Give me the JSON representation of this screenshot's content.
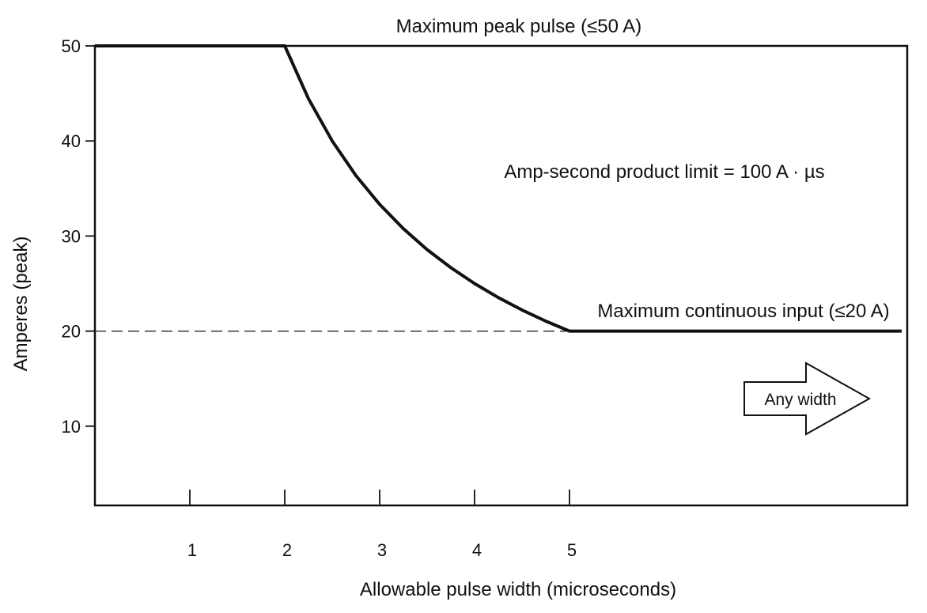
{
  "chart_data": {
    "type": "line",
    "xlabel": "Allowable pulse width (microseconds)",
    "ylabel": "Amperes (peak)",
    "xlim": [
      0,
      8.5
    ],
    "ylim": [
      0,
      50
    ],
    "x_ticks": [
      1,
      2,
      3,
      4,
      5
    ],
    "y_ticks": [
      10,
      20,
      30,
      40,
      50
    ],
    "series": [
      {
        "points": [
          [
            0,
            50
          ],
          [
            2,
            50
          ],
          [
            2.25,
            44.44
          ],
          [
            2.5,
            40
          ],
          [
            2.75,
            36.36
          ],
          [
            3,
            33.33
          ],
          [
            3.25,
            30.77
          ],
          [
            3.5,
            28.57
          ],
          [
            3.75,
            26.67
          ],
          [
            4,
            25
          ],
          [
            4.25,
            23.53
          ],
          [
            4.5,
            22.22
          ],
          [
            4.75,
            21.05
          ],
          [
            5,
            20
          ],
          [
            8.5,
            20
          ]
        ]
      }
    ],
    "reference_line": {
      "y": 20,
      "x_range": [
        0,
        5
      ],
      "style": "dashed"
    },
    "annotations": {
      "top": "Maximum peak pulse (≤50 A)",
      "product_limit": "Amp-second product limit = 100 A · µs",
      "continuous": "Maximum continuous input (≤20 A)",
      "arrow": "Any width"
    }
  }
}
